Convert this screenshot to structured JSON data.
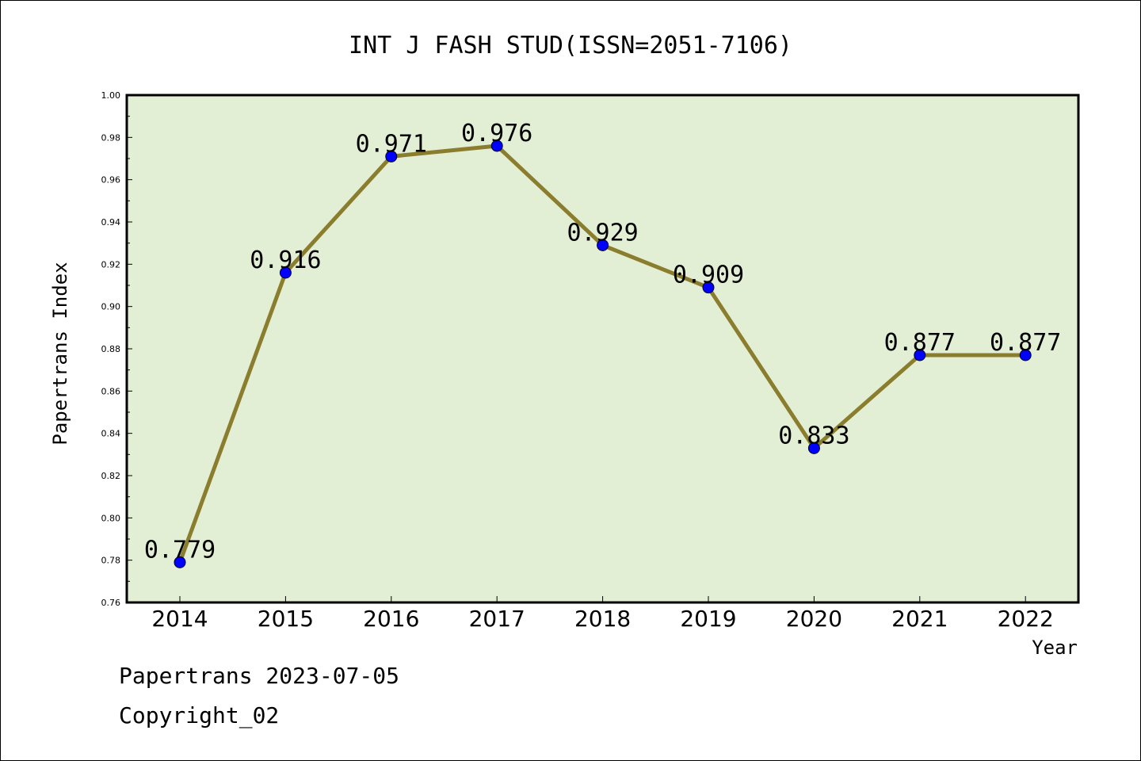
{
  "chart_data": {
    "type": "line",
    "title": "INT J FASH STUD(ISSN=2051-7106)",
    "xlabel": "Year",
    "ylabel": "Papertrans Index",
    "categories": [
      "2014",
      "2015",
      "2016",
      "2017",
      "2018",
      "2019",
      "2020",
      "2021",
      "2022"
    ],
    "series": [
      {
        "values": [
          0.779,
          0.916,
          0.971,
          0.976,
          0.929,
          0.909,
          0.833,
          0.877,
          0.877
        ]
      }
    ],
    "data_labels": [
      "0.779",
      "0.916",
      "0.971",
      "0.976",
      "0.929",
      "0.909",
      "0.833",
      "0.877",
      "0.877"
    ],
    "ylim": [
      0.76,
      1.0
    ],
    "yticks": [
      "0.76",
      "0.78",
      "0.80",
      "0.82",
      "0.84",
      "0.86",
      "0.88",
      "0.90",
      "0.92",
      "0.94",
      "0.96",
      "0.98",
      "1.00"
    ],
    "grid": false,
    "colors": {
      "plot_bg": "#e2efd4",
      "line": "#8b7d2e",
      "marker": "#0000ff"
    }
  },
  "footer": {
    "date_line": "Papertrans 2023-07-05",
    "copyright": "Copyright_02"
  }
}
